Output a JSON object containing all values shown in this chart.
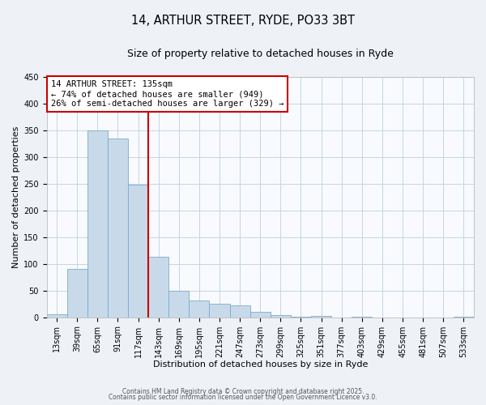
{
  "title1": "14, ARTHUR STREET, RYDE, PO33 3BT",
  "title2": "Size of property relative to detached houses in Ryde",
  "xlabel": "Distribution of detached houses by size in Ryde",
  "ylabel": "Number of detached properties",
  "bar_labels": [
    "13sqm",
    "39sqm",
    "65sqm",
    "91sqm",
    "117sqm",
    "143sqm",
    "169sqm",
    "195sqm",
    "221sqm",
    "247sqm",
    "273sqm",
    "299sqm",
    "325sqm",
    "351sqm",
    "377sqm",
    "403sqm",
    "429sqm",
    "455sqm",
    "481sqm",
    "507sqm",
    "533sqm"
  ],
  "bar_values": [
    5,
    90,
    350,
    335,
    248,
    113,
    50,
    32,
    25,
    22,
    10,
    4,
    1,
    2,
    0,
    1,
    0,
    0,
    0,
    0,
    1
  ],
  "bar_color": "#c8daea",
  "bar_edgecolor": "#7aabcf",
  "vline_color": "#cc0000",
  "vline_x_idx": 4,
  "ylim": [
    0,
    450
  ],
  "yticks": [
    0,
    50,
    100,
    150,
    200,
    250,
    300,
    350,
    400,
    450
  ],
  "annotation_line1": "14 ARTHUR STREET: 135sqm",
  "annotation_line2": "← 74% of detached houses are smaller (949)",
  "annotation_line3": "26% of semi-detached houses are larger (329) →",
  "box_edgecolor": "#cc0000",
  "footnote1": "Contains HM Land Registry data © Crown copyright and database right 2025.",
  "footnote2": "Contains public sector information licensed under the Open Government Licence v3.0.",
  "bg_color": "#eef2f7",
  "plot_bg_color": "#f8fafd",
  "grid_color": "#c5d5e5",
  "title1_fontsize": 10.5,
  "title2_fontsize": 9,
  "axis_label_fontsize": 8,
  "tick_fontsize": 7,
  "annotation_fontsize": 7.5
}
